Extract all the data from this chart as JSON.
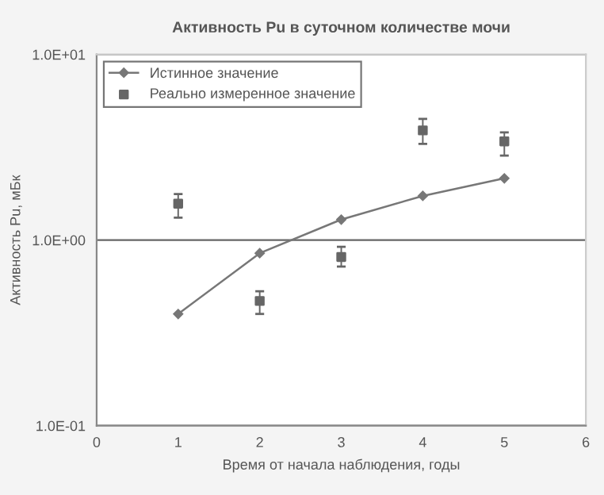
{
  "chart_data": {
    "type": "line",
    "title": "Активность Pu в суточном количестве мочи",
    "xlabel": "Время от начала наблюдения, годы",
    "ylabel": "Активность Pu, мБк",
    "x": [
      1,
      2,
      3,
      4,
      5
    ],
    "series": [
      {
        "name": "Истинное значение",
        "color": "#777777",
        "marker": "diamond",
        "values": [
          0.4,
          0.85,
          1.29,
          1.73,
          2.15
        ]
      },
      {
        "name": "Реально измеренное значение",
        "type": "scatter",
        "color": "#666666",
        "marker": "square",
        "values": [
          1.57,
          0.47,
          0.81,
          3.9,
          3.4
        ],
        "errors": [
          [
            1.32,
            1.77
          ],
          [
            0.4,
            0.53
          ],
          [
            0.72,
            0.92
          ],
          [
            3.3,
            4.5
          ],
          [
            2.85,
            3.8
          ]
        ]
      }
    ],
    "log": "y",
    "xlim": [
      0,
      6
    ],
    "xticks": [
      0,
      1,
      2,
      3,
      4,
      5,
      6
    ],
    "ylim": [
      0.1,
      10
    ],
    "yticks": [
      {
        "value": 0.1,
        "label": "1.0E-01"
      },
      {
        "value": 1,
        "label": "1.0E+00"
      },
      {
        "value": 10,
        "label": "1.0E+01"
      }
    ],
    "grid": "y",
    "legend": "top left"
  }
}
